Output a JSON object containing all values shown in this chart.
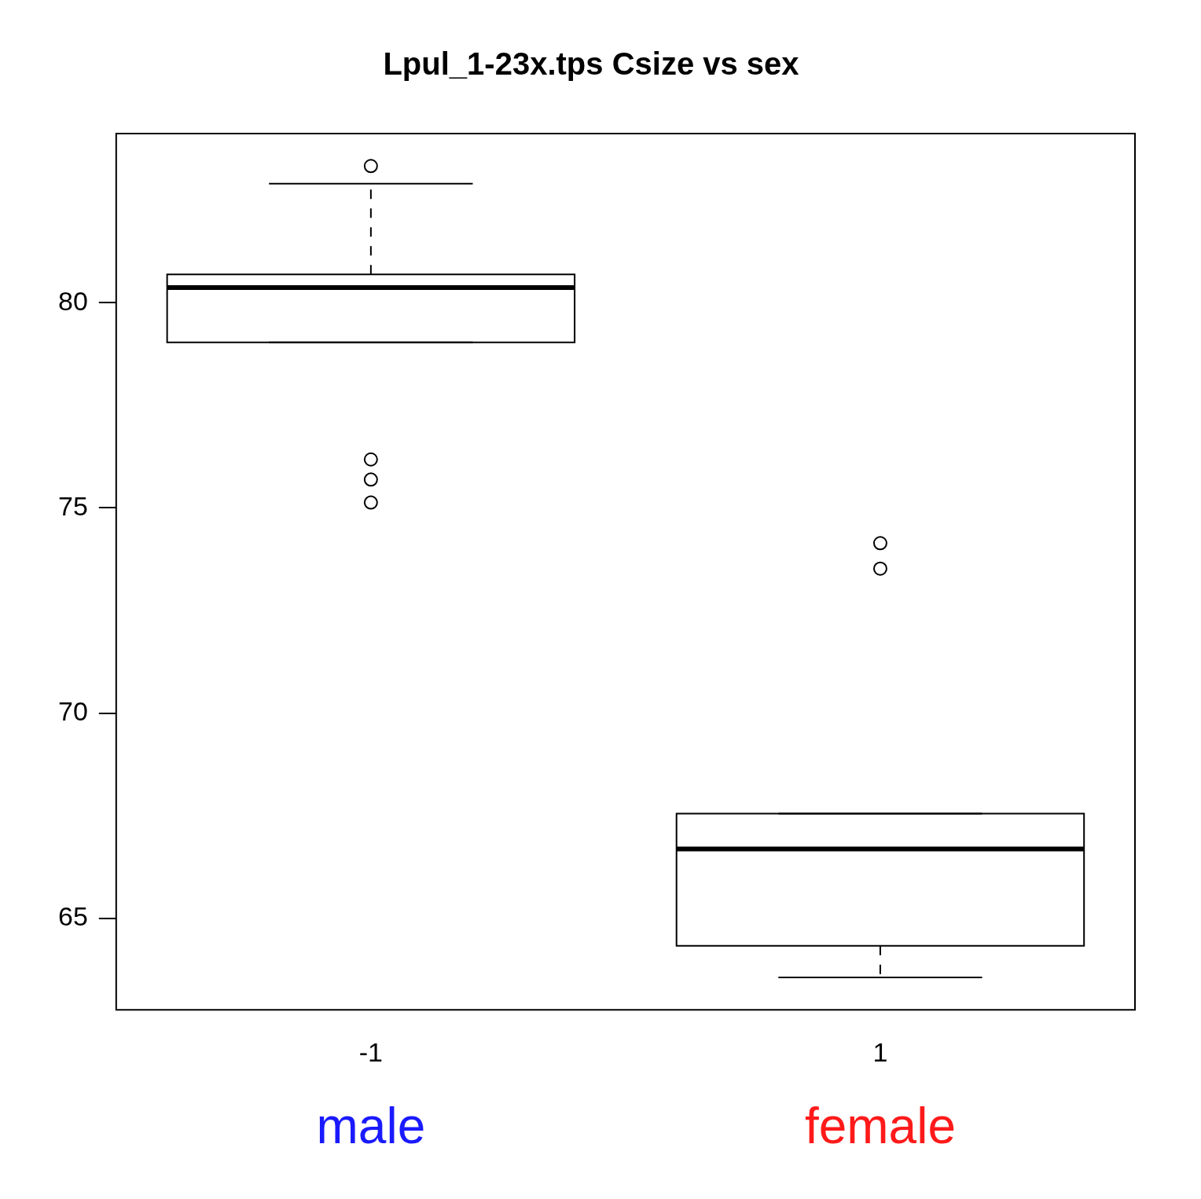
{
  "chart_data": {
    "type": "box",
    "title": "Lpul_1-23x.tps Csize vs sex",
    "categories": [
      "-1",
      "1"
    ],
    "boxes": [
      {
        "low": 79.03,
        "q1": 79.03,
        "median": 80.37,
        "q3": 80.69,
        "high": 82.9,
        "outliers": [
          83.33,
          76.18,
          75.69,
          75.13
        ]
      },
      {
        "low": 63.56,
        "q1": 64.33,
        "median": 66.69,
        "q3": 67.55,
        "high": 67.55,
        "outliers": [
          74.14,
          73.52
        ]
      }
    ],
    "ylim": [
      62.77,
      84.12
    ],
    "yticks": [
      65,
      70,
      75,
      80
    ],
    "grid": false,
    "legend": false,
    "annotations": [
      "male",
      "female"
    ]
  }
}
